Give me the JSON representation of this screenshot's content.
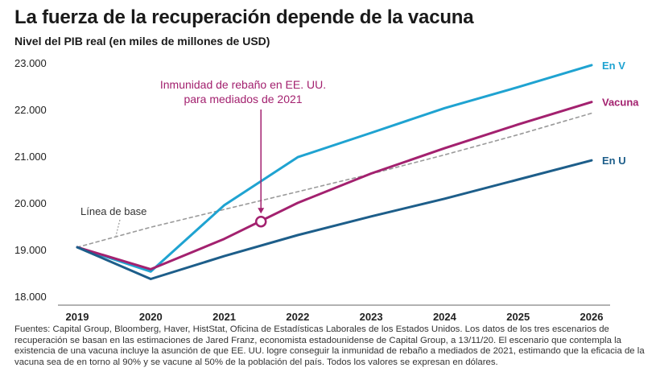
{
  "chart_data": {
    "type": "line",
    "title": "La fuerza de la recuperación depende de la vacuna",
    "subtitle": "Nivel del PIB real (en miles de millones de USD)",
    "x": [
      "2019",
      "2020",
      "2021",
      "2022",
      "2023",
      "2024",
      "2025",
      "2026"
    ],
    "ylim": [
      18000,
      23000
    ],
    "yticks": [
      18000,
      19000,
      20000,
      21000,
      22000,
      23000
    ],
    "ytick_labels": [
      "18.000",
      "19.000",
      "20.000",
      "21.000",
      "22.000",
      "23.000"
    ],
    "grid": false,
    "series": [
      {
        "name": "En V",
        "color": "#1fa3d1",
        "style": "solid",
        "values": [
          19050,
          18530,
          19950,
          20980,
          21500,
          22030,
          22480,
          22950
        ]
      },
      {
        "name": "Vacuna",
        "color": "#a3216f",
        "style": "solid",
        "values": [
          19050,
          18580,
          19230,
          20000,
          20630,
          21170,
          21680,
          22160
        ]
      },
      {
        "name": "En U",
        "color": "#1d5e8a",
        "style": "solid",
        "values": [
          19050,
          18370,
          18860,
          19310,
          19710,
          20090,
          20500,
          20910
        ]
      },
      {
        "name": "Línea de base",
        "color": "#9a9a9a",
        "style": "dashed",
        "values": [
          19050,
          19480,
          19860,
          20240,
          20620,
          21030,
          21460,
          21920
        ]
      }
    ],
    "annotation": {
      "lines": [
        "Inmunidad de rebaño en EE. UU.",
        "para mediados de 2021"
      ],
      "point": {
        "x": 2021.5,
        "y": 19600
      },
      "color": "#a3216f"
    }
  },
  "source_note": "Fuentes: Capital Group, Bloomberg, Haver, HistStat, Oficina de Estadísticas Laborales de los Estados Unidos. Los datos de los tres escenarios de recuperación se basan en las estimaciones de Jared Franz, economista estadounidense de Capital Group, a 13/11/20. El escenario que contempla la existencia de una vacuna incluye la asunción de que EE. UU. logre conseguir la inmunidad de rebaño a mediados de 2021, estimando que la eficacia de la vacuna sea de en torno al 90% y se vacune al 50% de la población del país. Todos los valores se expresan en dólares."
}
